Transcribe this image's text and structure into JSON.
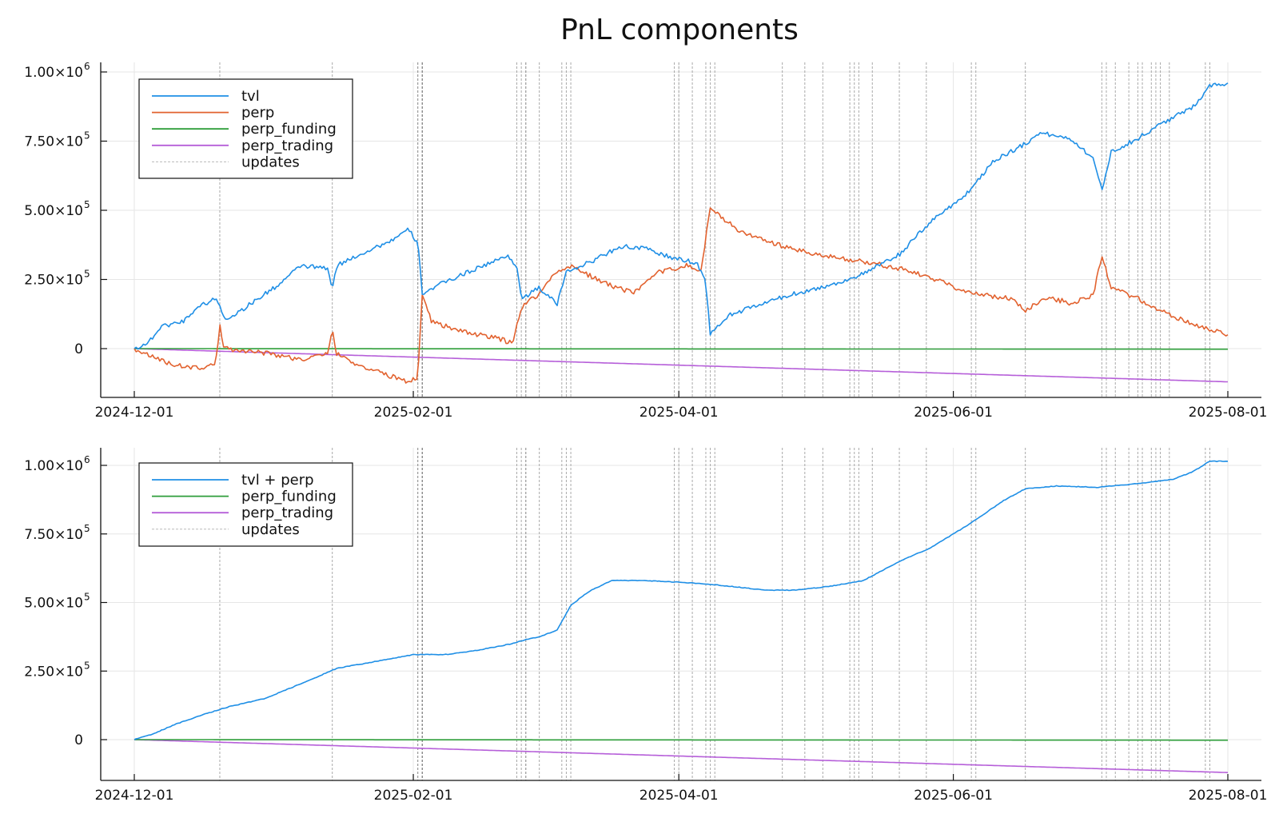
{
  "figure": {
    "title": "PnL components",
    "x_range": [
      "2024-12-01",
      "2025-08-01"
    ],
    "x_ticks": [
      "2024-12-01",
      "2025-02-01",
      "2025-04-01",
      "2025-06-01",
      "2025-08-01"
    ],
    "y_ticks": [
      {
        "value": 0,
        "label": "0",
        "exp": ""
      },
      {
        "value": 250000,
        "label": "2.50×10",
        "exp": "5"
      },
      {
        "value": 500000,
        "label": "5.00×10",
        "exp": "5"
      },
      {
        "value": 750000,
        "label": "7.50×10",
        "exp": "5"
      },
      {
        "value": 1000000,
        "label": "1.00×10",
        "exp": "6"
      }
    ],
    "colors": {
      "blue": "#1f8fe6",
      "orange": "#e2622f",
      "green": "#2e9e3a",
      "purple": "#b65fd9",
      "updates": "#8c8c8c",
      "grid": "#e6e6e6"
    }
  },
  "updates": [
    "2024-12-20",
    "2025-01-14",
    "2025-02-02",
    "2025-02-02",
    "2025-02-03",
    "2025-02-03",
    "2025-02-03",
    "2025-02-03",
    "2025-02-03",
    "2025-02-03",
    "2025-02-24",
    "2025-02-25",
    "2025-02-26",
    "2025-02-26",
    "2025-03-01",
    "2025-03-06",
    "2025-03-07",
    "2025-03-08",
    "2025-03-31",
    "2025-04-01",
    "2025-04-04",
    "2025-04-07",
    "2025-04-08",
    "2025-04-09",
    "2025-04-24",
    "2025-04-29",
    "2025-05-03",
    "2025-05-09",
    "2025-05-10",
    "2025-05-11",
    "2025-05-14",
    "2025-05-20",
    "2025-05-26",
    "2025-06-05",
    "2025-06-06",
    "2025-06-17",
    "2025-07-04",
    "2025-07-05",
    "2025-07-07",
    "2025-07-10",
    "2025-07-12",
    "2025-07-13",
    "2025-07-15",
    "2025-07-16",
    "2025-07-17",
    "2025-07-19",
    "2025-07-27",
    "2025-07-28"
  ],
  "chart_data": [
    {
      "type": "line",
      "title": "",
      "xlabel": "",
      "ylabel": "",
      "ylim": [
        -150000,
        1000000
      ],
      "grid": true,
      "legend_position": "top-left",
      "legend": [
        "tvl",
        "perp",
        "perp_funding",
        "perp_trading",
        "updates"
      ],
      "series": [
        {
          "name": "tvl",
          "color": "#1f8fe6",
          "noise": 8000,
          "points": [
            [
              "2024-12-01",
              0
            ],
            [
              "2024-12-04",
              20000
            ],
            [
              "2024-12-07",
              80000
            ],
            [
              "2024-12-12",
              100000
            ],
            [
              "2024-12-15",
              150000
            ],
            [
              "2024-12-19",
              180000
            ],
            [
              "2024-12-20",
              160000
            ],
            [
              "2024-12-21",
              105000
            ],
            [
              "2024-12-24",
              130000
            ],
            [
              "2024-12-28",
              175000
            ],
            [
              "2025-01-02",
              230000
            ],
            [
              "2025-01-07",
              300000
            ],
            [
              "2025-01-13",
              290000
            ],
            [
              "2025-01-14",
              210000
            ],
            [
              "2025-01-15",
              300000
            ],
            [
              "2025-01-20",
              340000
            ],
            [
              "2025-01-27",
              390000
            ],
            [
              "2025-01-31",
              430000
            ],
            [
              "2025-02-02",
              380000
            ],
            [
              "2025-02-03",
              200000
            ],
            [
              "2025-02-08",
              240000
            ],
            [
              "2025-02-15",
              290000
            ],
            [
              "2025-02-22",
              335000
            ],
            [
              "2025-02-24",
              300000
            ],
            [
              "2025-02-25",
              180000
            ],
            [
              "2025-03-01",
              220000
            ],
            [
              "2025-03-05",
              160000
            ],
            [
              "2025-03-07",
              280000
            ],
            [
              "2025-03-12",
              310000
            ],
            [
              "2025-03-19",
              370000
            ],
            [
              "2025-03-25",
              360000
            ],
            [
              "2025-03-30",
              330000
            ],
            [
              "2025-04-05",
              310000
            ],
            [
              "2025-04-07",
              240000
            ],
            [
              "2025-04-08",
              50000
            ],
            [
              "2025-04-12",
              120000
            ],
            [
              "2025-04-20",
              165000
            ],
            [
              "2025-04-27",
              200000
            ],
            [
              "2025-05-05",
              230000
            ],
            [
              "2025-05-12",
              270000
            ],
            [
              "2025-05-20",
              340000
            ],
            [
              "2025-05-27",
              460000
            ],
            [
              "2025-06-04",
              560000
            ],
            [
              "2025-06-10",
              680000
            ],
            [
              "2025-06-17",
              740000
            ],
            [
              "2025-06-20",
              780000
            ],
            [
              "2025-06-27",
              760000
            ],
            [
              "2025-07-02",
              690000
            ],
            [
              "2025-07-04",
              570000
            ],
            [
              "2025-07-06",
              710000
            ],
            [
              "2025-07-12",
              760000
            ],
            [
              "2025-07-18",
              820000
            ],
            [
              "2025-07-24",
              870000
            ],
            [
              "2025-07-28",
              950000
            ],
            [
              "2025-08-01",
              960000
            ]
          ]
        },
        {
          "name": "perp",
          "color": "#e2622f",
          "noise": 9000,
          "points": [
            [
              "2024-12-01",
              0
            ],
            [
              "2024-12-05",
              -30000
            ],
            [
              "2024-12-10",
              -60000
            ],
            [
              "2024-12-15",
              -70000
            ],
            [
              "2024-12-19",
              -60000
            ],
            [
              "2024-12-20",
              80000
            ],
            [
              "2024-12-21",
              0
            ],
            [
              "2024-12-25",
              -5000
            ],
            [
              "2025-01-01",
              -20000
            ],
            [
              "2025-01-07",
              -40000
            ],
            [
              "2025-01-13",
              -20000
            ],
            [
              "2025-01-14",
              70000
            ],
            [
              "2025-01-15",
              -20000
            ],
            [
              "2025-01-20",
              -60000
            ],
            [
              "2025-01-27",
              -100000
            ],
            [
              "2025-01-31",
              -120000
            ],
            [
              "2025-02-02",
              -100000
            ],
            [
              "2025-02-03",
              200000
            ],
            [
              "2025-02-05",
              100000
            ],
            [
              "2025-02-12",
              60000
            ],
            [
              "2025-02-19",
              40000
            ],
            [
              "2025-02-23",
              20000
            ],
            [
              "2025-02-25",
              150000
            ],
            [
              "2025-03-01",
              200000
            ],
            [
              "2025-03-05",
              280000
            ],
            [
              "2025-03-08",
              300000
            ],
            [
              "2025-03-15",
              240000
            ],
            [
              "2025-03-22",
              200000
            ],
            [
              "2025-03-28",
              280000
            ],
            [
              "2025-04-03",
              300000
            ],
            [
              "2025-04-06",
              280000
            ],
            [
              "2025-04-07",
              400000
            ],
            [
              "2025-04-08",
              510000
            ],
            [
              "2025-04-10",
              480000
            ],
            [
              "2025-04-15",
              420000
            ],
            [
              "2025-04-22",
              380000
            ],
            [
              "2025-05-01",
              340000
            ],
            [
              "2025-05-10",
              320000
            ],
            [
              "2025-05-20",
              290000
            ],
            [
              "2025-05-28",
              250000
            ],
            [
              "2025-06-05",
              200000
            ],
            [
              "2025-06-14",
              180000
            ],
            [
              "2025-06-17",
              140000
            ],
            [
              "2025-06-22",
              185000
            ],
            [
              "2025-06-27",
              165000
            ],
            [
              "2025-07-02",
              190000
            ],
            [
              "2025-07-04",
              340000
            ],
            [
              "2025-07-06",
              220000
            ],
            [
              "2025-07-12",
              180000
            ],
            [
              "2025-07-19",
              120000
            ],
            [
              "2025-07-26",
              80000
            ],
            [
              "2025-08-01",
              50000
            ]
          ]
        },
        {
          "name": "perp_funding",
          "color": "#2e9e3a",
          "noise": 0,
          "points": [
            [
              "2024-12-01",
              0
            ],
            [
              "2025-08-01",
              -2000
            ]
          ]
        },
        {
          "name": "perp_trading",
          "color": "#b65fd9",
          "noise": 0,
          "points": [
            [
              "2024-12-01",
              0
            ],
            [
              "2025-08-01",
              -120000
            ]
          ]
        }
      ]
    },
    {
      "type": "line",
      "title": "",
      "xlabel": "",
      "ylabel": "",
      "ylim": [
        -150000,
        1050000
      ],
      "grid": true,
      "legend_position": "top-left",
      "legend": [
        "tvl + perp",
        "perp_funding",
        "perp_trading",
        "updates"
      ],
      "series": [
        {
          "name": "tvl + perp",
          "color": "#1f8fe6",
          "noise": 1200,
          "points": [
            [
              "2024-12-01",
              0
            ],
            [
              "2024-12-05",
              20000
            ],
            [
              "2024-12-10",
              55000
            ],
            [
              "2024-12-16",
              90000
            ],
            [
              "2024-12-22",
              120000
            ],
            [
              "2024-12-30",
              150000
            ],
            [
              "2025-01-08",
              210000
            ],
            [
              "2025-01-15",
              260000
            ],
            [
              "2025-01-22",
              280000
            ],
            [
              "2025-02-01",
              310000
            ],
            [
              "2025-02-08",
              310000
            ],
            [
              "2025-02-15",
              325000
            ],
            [
              "2025-02-23",
              350000
            ],
            [
              "2025-02-26",
              365000
            ],
            [
              "2025-03-01",
              375000
            ],
            [
              "2025-03-05",
              400000
            ],
            [
              "2025-03-08",
              490000
            ],
            [
              "2025-03-12",
              540000
            ],
            [
              "2025-03-17",
              580000
            ],
            [
              "2025-03-25",
              580000
            ],
            [
              "2025-04-05",
              570000
            ],
            [
              "2025-04-12",
              560000
            ],
            [
              "2025-04-20",
              545000
            ],
            [
              "2025-04-27",
              545000
            ],
            [
              "2025-05-05",
              560000
            ],
            [
              "2025-05-12",
              580000
            ],
            [
              "2025-05-20",
              650000
            ],
            [
              "2025-05-27",
              700000
            ],
            [
              "2025-06-04",
              780000
            ],
            [
              "2025-06-12",
              870000
            ],
            [
              "2025-06-17",
              915000
            ],
            [
              "2025-06-24",
              925000
            ],
            [
              "2025-07-03",
              920000
            ],
            [
              "2025-07-13",
              935000
            ],
            [
              "2025-07-20",
              950000
            ],
            [
              "2025-07-24",
              975000
            ],
            [
              "2025-07-28",
              1015000
            ],
            [
              "2025-08-01",
              1015000
            ]
          ]
        },
        {
          "name": "perp_funding",
          "color": "#2e9e3a",
          "noise": 0,
          "points": [
            [
              "2024-12-01",
              0
            ],
            [
              "2025-08-01",
              -2000
            ]
          ]
        },
        {
          "name": "perp_trading",
          "color": "#b65fd9",
          "noise": 0,
          "points": [
            [
              "2024-12-01",
              0
            ],
            [
              "2025-08-01",
              -120000
            ]
          ]
        }
      ]
    }
  ]
}
